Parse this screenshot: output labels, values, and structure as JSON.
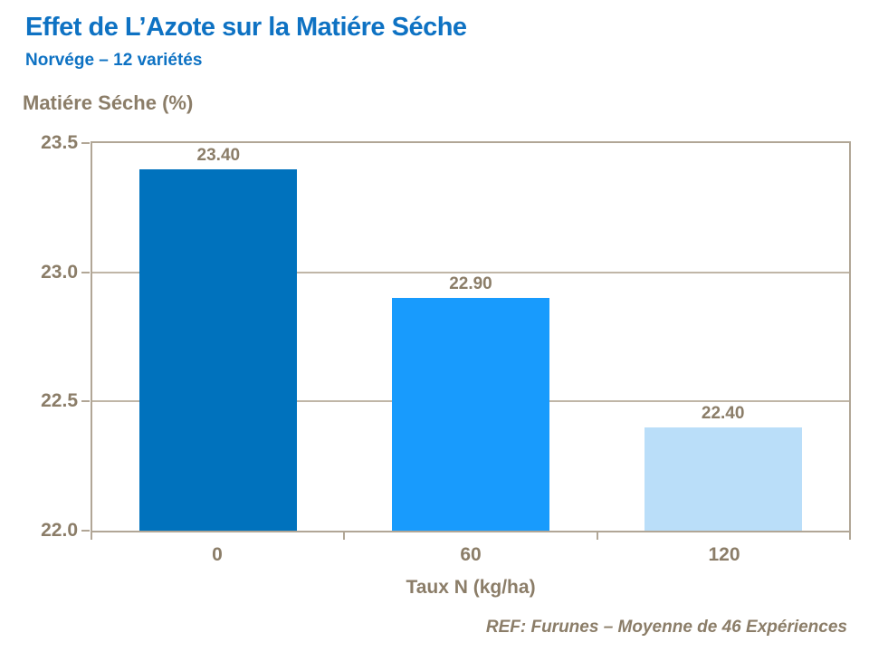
{
  "header": {
    "title": "Effet de L’Azote sur la Matiére Séche",
    "subtitle": "Norvége – 12 variétés"
  },
  "chart_data": {
    "type": "bar",
    "title": "Effet de L’Azote sur la Matiére Séche",
    "subtitle": "Norvége – 12 variétés",
    "ylabel": "Matiére Séche (%)",
    "xlabel": "Taux N (kg/ha)",
    "categories": [
      "0",
      "60",
      "120"
    ],
    "values": [
      23.4,
      22.9,
      22.4
    ],
    "value_labels": [
      "23.40",
      "22.90",
      "22.40"
    ],
    "bar_colors": [
      "#0072bd",
      "#189bfd",
      "#badef9"
    ],
    "ylim": [
      22.0,
      23.5
    ],
    "ytick_values": [
      23.5,
      23.0,
      22.5,
      22.0
    ],
    "ytick_labels": [
      "23.5",
      "23.0",
      "22.5",
      "22.0"
    ],
    "grid": true,
    "legend_position": "none",
    "bar_width_fraction": 0.625
  },
  "footer": {
    "ref": "REF: Furunes – Moyenne de 46 Expériences"
  },
  "colors": {
    "title_blue": "#0e72c3",
    "axis_text_brown": "#8b7d68",
    "plot_border_tan": "#b1a696",
    "gridline_tan": "#c0b6a7",
    "background": "#ffffff"
  }
}
